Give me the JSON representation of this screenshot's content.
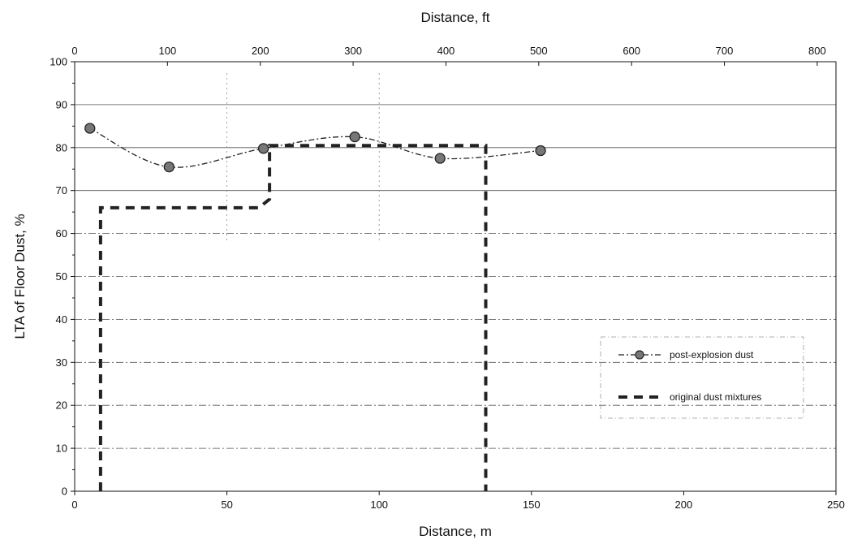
{
  "chart_data": {
    "type": "line",
    "xlabel": "Distance, m",
    "x2label": "Distance,  ft",
    "ylabel": "LTA of Floor Dust,  %",
    "xlim": [
      0,
      250
    ],
    "x2lim": [
      0,
      820.2
    ],
    "ylim": [
      0,
      100
    ],
    "x_ticks": [
      0,
      50,
      100,
      150,
      200,
      250
    ],
    "x2_ticks": [
      0,
      100,
      200,
      300,
      400,
      500,
      600,
      700,
      800
    ],
    "y_ticks": [
      0,
      10,
      20,
      30,
      40,
      50,
      60,
      70,
      80,
      90,
      100
    ],
    "grid": true,
    "legend_position": "right",
    "series": [
      {
        "name": "post-explosion dust",
        "style": "dash-dot line with filled circle markers",
        "color": "#222222",
        "x": [
          5,
          31,
          62,
          92,
          120,
          153
        ],
        "y": [
          84.5,
          75.5,
          79.8,
          82.5,
          77.5,
          79.3
        ]
      },
      {
        "name": "original dust mixtures",
        "style": "thick dashed step line",
        "color": "#222222",
        "x": [
          8.5,
          8.5,
          60.5,
          60.5,
          64,
          64,
          135,
          135,
          135
        ],
        "y": [
          0,
          66,
          66,
          66,
          68,
          80.5,
          80.5,
          78.5,
          0
        ]
      }
    ]
  }
}
